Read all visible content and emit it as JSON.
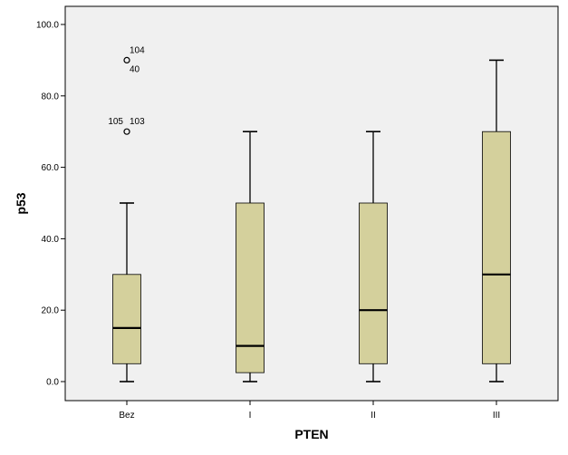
{
  "chart_data": {
    "type": "boxplot",
    "xlabel": "PTEN",
    "ylabel": "p53",
    "ylim": [
      0,
      100
    ],
    "yticks": [
      0,
      20,
      40,
      60,
      80,
      100
    ],
    "ytick_labels": [
      "0.0",
      "20.0",
      "40.0",
      "60.0",
      "80.0",
      "100.0"
    ],
    "grid": false,
    "colors": {
      "box_fill": "#d4d09c",
      "plot_bg": "#f0f0f0",
      "line": "#000000"
    },
    "categories": [
      "Bez",
      "I",
      "II",
      "III"
    ],
    "boxes": [
      {
        "category": "Bez",
        "min": 0,
        "q1": 5,
        "median": 15,
        "q3": 30,
        "max": 50
      },
      {
        "category": "I",
        "min": 0,
        "q1": 2.5,
        "median": 10,
        "q3": 50,
        "max": 70
      },
      {
        "category": "II",
        "min": 0,
        "q1": 5,
        "median": 20,
        "q3": 50,
        "max": 70
      },
      {
        "category": "III",
        "min": 0,
        "q1": 5,
        "median": 30,
        "q3": 70,
        "max": 90
      }
    ],
    "outliers": [
      {
        "category": "Bez",
        "value": 90,
        "labels": [
          "104",
          "40"
        ]
      },
      {
        "category": "Bez",
        "value": 70,
        "labels": [
          "105",
          "103"
        ]
      }
    ]
  }
}
